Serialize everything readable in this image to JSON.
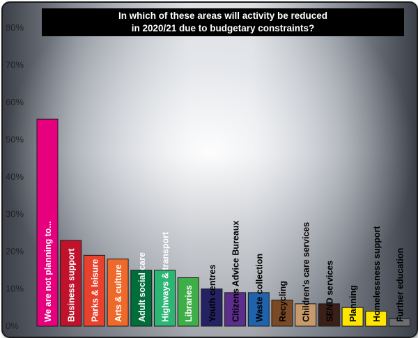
{
  "chart_data": {
    "type": "bar",
    "title_lines": [
      "In which of these areas will activity be reduced",
      "in 2020/21 due to budgetary constraints?"
    ],
    "ylim": [
      0,
      80
    ],
    "yticks": [
      "0%",
      "10%",
      "20%",
      "30%",
      "40%",
      "50%",
      "60%",
      "70%",
      "80%"
    ],
    "unit": "%",
    "grid": false,
    "categories": [
      "We are not planning to...",
      "Business support",
      "Parks & leisure",
      "Arts & culture",
      "Adult social care",
      "Highways & transport",
      "Libraries",
      "Youth centres",
      "Citizens Advice Bureaux",
      "Waste collection",
      "Recycling",
      "Children's care services",
      "SEND services",
      "Planning",
      "Homelessness support",
      "Further education"
    ],
    "values": [
      55.5,
      23,
      19,
      18,
      15,
      15,
      13,
      10,
      9,
      9,
      7,
      6,
      6,
      5,
      4,
      2
    ],
    "colors": [
      "#e6007e",
      "#c0132b",
      "#e8422c",
      "#ef6a2a",
      "#006d3a",
      "#2bb673",
      "#3fae49",
      "#242263",
      "#5c2d8a",
      "#1f63ad",
      "#7a4a26",
      "#c79a6b",
      "#3a2016",
      "#ffe600",
      "#ffe600",
      "#6d6e71"
    ],
    "label_colors": [
      "#ffffff",
      "#ffffff",
      "#ffffff",
      "#ffffff",
      "#ffffff",
      "#ffffff",
      "#ffffff",
      "#000000",
      "#000000",
      "#000000",
      "#000000",
      "#000000",
      "#000000",
      "#000000",
      "#000000",
      "#000000"
    ]
  }
}
